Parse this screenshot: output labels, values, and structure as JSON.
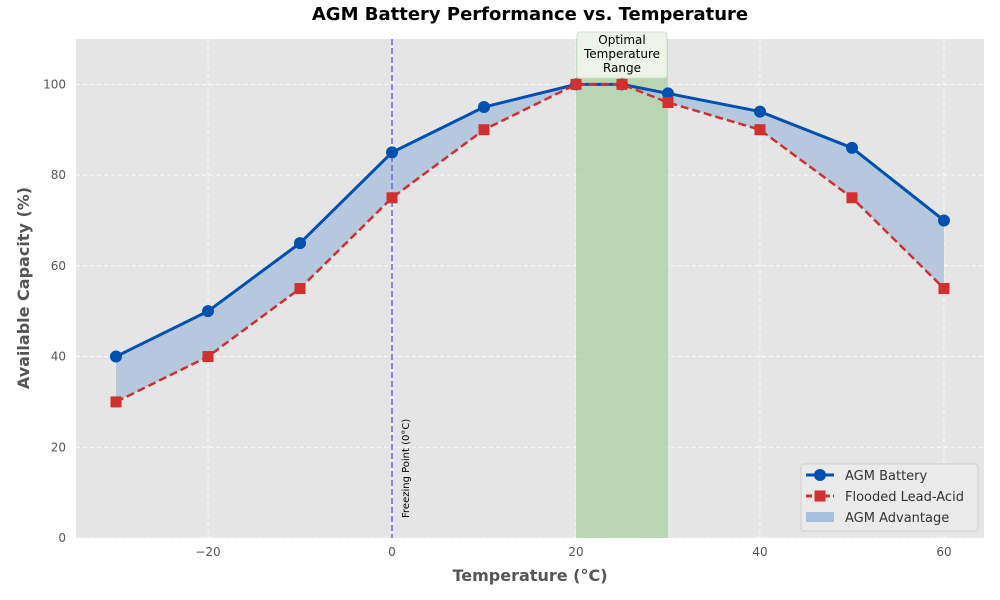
{
  "chart_data": {
    "type": "line",
    "title": "AGM Battery Performance vs. Temperature",
    "xlabel": "Temperature (°C)",
    "ylabel": "Available Capacity (%)",
    "xlim": [
      -34.35,
      64.35
    ],
    "ylim": [
      0,
      110
    ],
    "xticks": [
      -20,
      0,
      20,
      40,
      60
    ],
    "xtick_labels": [
      "−20",
      "0",
      "20",
      "40",
      "60"
    ],
    "yticks": [
      0,
      20,
      40,
      60,
      80,
      100
    ],
    "ytick_labels": [
      "0",
      "20",
      "40",
      "60",
      "80",
      "100"
    ],
    "grid": true,
    "x": [
      -30,
      -20,
      -10,
      0,
      10,
      20,
      25,
      30,
      40,
      50,
      60
    ],
    "series": [
      {
        "name": "AGM Battery",
        "values": [
          40,
          50,
          65,
          85,
          95,
          100,
          100,
          98,
          94,
          86,
          70
        ],
        "color": "#0050b0",
        "marker": "circle",
        "linestyle": "solid"
      },
      {
        "name": "Flooded Lead-Acid",
        "values": [
          30,
          40,
          55,
          75,
          90,
          100,
          100,
          96,
          90,
          75,
          55
        ],
        "color": "#d03030",
        "marker": "square",
        "linestyle": "dashed"
      }
    ],
    "fill_between": {
      "name": "AGM Advantage",
      "color": "#a9c0dc"
    },
    "shaded_region": {
      "x_range": [
        20,
        30
      ],
      "color": "#a8d0a0",
      "annotation": "Optimal\nTemperature\nRange"
    },
    "vline": {
      "x": 0,
      "label": "Freezing Point (0°C)",
      "color": "#6a6ae0"
    },
    "legend": {
      "placement": "bottom-right",
      "entries": [
        "AGM Battery",
        "Flooded Lead-Acid",
        "AGM Advantage"
      ]
    }
  }
}
